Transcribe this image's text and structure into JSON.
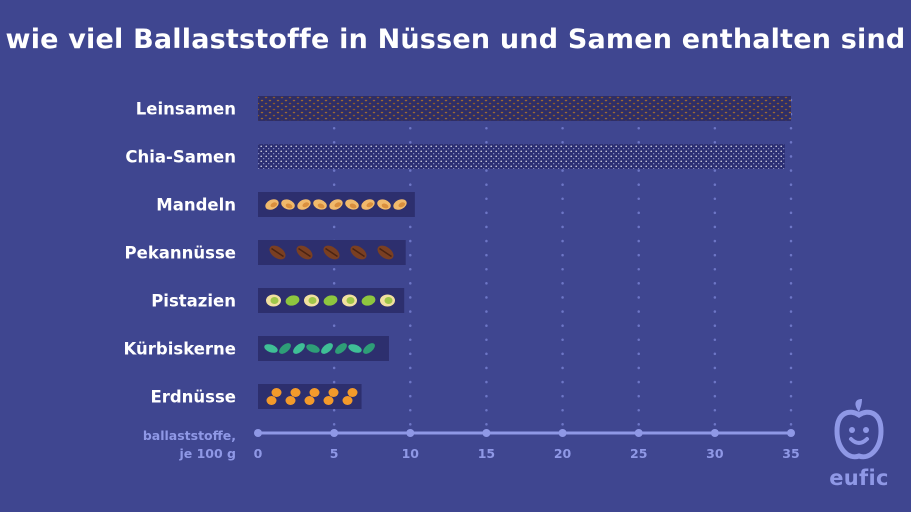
{
  "title": "wie viel Ballaststoffe in Nüssen und Samen enthalten sind",
  "chart_data": {
    "type": "bar",
    "orientation": "horizontal",
    "categories": [
      "Leinsamen",
      "Chia-Samen",
      "Mandeln",
      "Pekannüsse",
      "Pistazien",
      "Kürbiskerne",
      "Erdnüsse"
    ],
    "values": [
      35,
      34.6,
      10.3,
      9.7,
      9.6,
      8.6,
      6.8
    ],
    "xlabel_lines": [
      "ballaststoffe,",
      "je 100 g"
    ],
    "xticks": [
      0,
      5,
      10,
      15,
      20,
      25,
      30,
      35
    ],
    "xlim": [
      0,
      35
    ],
    "grid": "dotted vertical",
    "colors": {
      "background": "#3f4690",
      "bar_band": "#2d2f6e",
      "axis": "#8f98e6",
      "text": "#ffffff"
    },
    "fillings": [
      "seeds-brown",
      "seeds-white",
      "almond-icons",
      "pecan-icons",
      "pistachio-icons",
      "pumpkin-seed-icons",
      "peanut-icons"
    ]
  },
  "logo": {
    "text": "eufic",
    "icon": "apple-face-icon"
  }
}
